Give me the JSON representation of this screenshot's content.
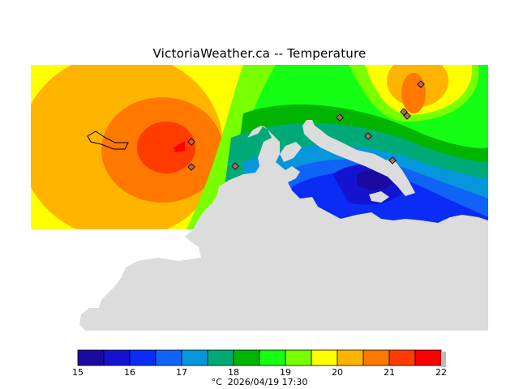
{
  "title": "VictoriaWeather.ca -- Temperature",
  "footer": {
    "unit": "°C",
    "timestamp": "2026/04/19 17:30"
  },
  "legend": {
    "ticks": [
      "15",
      "16",
      "17",
      "18",
      "19",
      "20",
      "21",
      "22"
    ],
    "colors": [
      "#1a0aa0",
      "#1414d0",
      "#0a2cf5",
      "#0f64f5",
      "#0596dc",
      "#00aa78",
      "#00b400",
      "#14ff14",
      "#78ff00",
      "#ffff00",
      "#ffb400",
      "#ff7800",
      "#ff3c00",
      "#ff0000"
    ]
  },
  "colors": {
    "land": "#dcdcdc",
    "background": "#ffffff",
    "station_marker": "#b46464"
  },
  "stations_count_visible": 9
}
